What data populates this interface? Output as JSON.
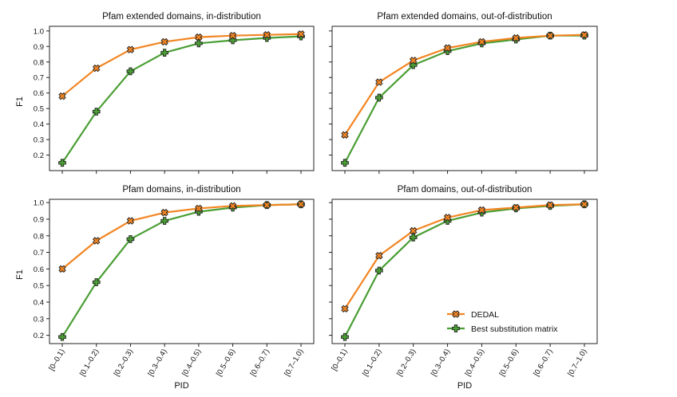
{
  "figure": {
    "shared_xlabel": "PID",
    "shared_ylabel": "F1",
    "legend": [
      {
        "name": "DEDAL",
        "color": "#f28522",
        "marker": "x-cross"
      },
      {
        "name": "Best substitution matrix",
        "color": "#4a9e34",
        "marker": "plus-cross"
      }
    ],
    "legend_position": "lower-right of bottom-right panel"
  },
  "chart_data": [
    {
      "type": "line",
      "title": "Pfam extended domains, in-distribution",
      "xlabel": "",
      "ylabel": "F1",
      "categories": [
        "[0–0.1)",
        "[0.1–0.2)",
        "[0.2–0.3)",
        "[0.3–0.4)",
        "[0.4–0.5)",
        "[0.5–0.6)",
        "[0.6–0.7)",
        "[0.7–1.0)"
      ],
      "ylim": [
        0.1,
        1.03
      ],
      "yticks": [
        "0.2",
        "0.3",
        "0.4",
        "0.5",
        "0.6",
        "0.7",
        "0.8",
        "0.9",
        "1.0"
      ],
      "series": [
        {
          "name": "DEDAL",
          "color": "#f28522",
          "values": [
            0.58,
            0.76,
            0.88,
            0.93,
            0.96,
            0.97,
            0.975,
            0.98
          ]
        },
        {
          "name": "Best substitution matrix",
          "color": "#4a9e34",
          "values": [
            0.15,
            0.48,
            0.74,
            0.86,
            0.92,
            0.94,
            0.955,
            0.965
          ]
        }
      ],
      "show_xticklabels": false,
      "show_ylabel": true
    },
    {
      "type": "line",
      "title": "Pfam extended domains, out-of-distribution",
      "xlabel": "",
      "ylabel": "",
      "categories": [
        "[0–0.1)",
        "[0.1–0.2)",
        "[0.2–0.3)",
        "[0.3–0.4)",
        "[0.4–0.5)",
        "[0.5–0.6)",
        "[0.6–0.7)",
        "[0.7–1.0)"
      ],
      "ylim": [
        0.1,
        1.03
      ],
      "yticks": [
        "0.2",
        "0.3",
        "0.4",
        "0.5",
        "0.6",
        "0.7",
        "0.8",
        "0.9",
        "1.0"
      ],
      "series": [
        {
          "name": "DEDAL",
          "color": "#f28522",
          "values": [
            0.33,
            0.67,
            0.81,
            0.89,
            0.93,
            0.955,
            0.97,
            0.975
          ]
        },
        {
          "name": "Best substitution matrix",
          "color": "#4a9e34",
          "values": [
            0.15,
            0.57,
            0.78,
            0.87,
            0.92,
            0.945,
            0.97,
            0.97
          ]
        }
      ],
      "show_xticklabels": false,
      "show_ylabel": false
    },
    {
      "type": "line",
      "title": "Pfam domains, in-distribution",
      "xlabel": "PID",
      "ylabel": "F1",
      "categories": [
        "[0–0.1)",
        "[0.1–0.2)",
        "[0.2–0.3)",
        "[0.3–0.4)",
        "[0.4–0.5)",
        "[0.5–0.6)",
        "[0.6–0.7)",
        "[0.7–1.0)"
      ],
      "ylim": [
        0.15,
        1.02
      ],
      "yticks": [
        "0.2",
        "0.3",
        "0.4",
        "0.5",
        "0.6",
        "0.7",
        "0.8",
        "0.9",
        "1.0"
      ],
      "series": [
        {
          "name": "DEDAL",
          "color": "#f28522",
          "values": [
            0.6,
            0.77,
            0.89,
            0.94,
            0.965,
            0.98,
            0.985,
            0.99
          ]
        },
        {
          "name": "Best substitution matrix",
          "color": "#4a9e34",
          "values": [
            0.19,
            0.52,
            0.78,
            0.89,
            0.945,
            0.97,
            0.985,
            0.99
          ]
        }
      ],
      "show_xticklabels": true,
      "show_ylabel": true
    },
    {
      "type": "line",
      "title": "Pfam domains, out-of-distribution",
      "xlabel": "PID",
      "ylabel": "",
      "categories": [
        "[0–0.1)",
        "[0.1–0.2)",
        "[0.2–0.3)",
        "[0.3–0.4)",
        "[0.4–0.5)",
        "[0.5–0.6)",
        "[0.6–0.7)",
        "[0.7–1.0)"
      ],
      "ylim": [
        0.15,
        1.02
      ],
      "yticks": [
        "0.2",
        "0.3",
        "0.4",
        "0.5",
        "0.6",
        "0.7",
        "0.8",
        "0.9",
        "1.0"
      ],
      "series": [
        {
          "name": "DEDAL",
          "color": "#f28522",
          "values": [
            0.36,
            0.68,
            0.83,
            0.91,
            0.955,
            0.97,
            0.985,
            0.99
          ]
        },
        {
          "name": "Best substitution matrix",
          "color": "#4a9e34",
          "values": [
            0.19,
            0.59,
            0.79,
            0.89,
            0.94,
            0.965,
            0.98,
            0.99
          ]
        }
      ],
      "show_xticklabels": true,
      "show_ylabel": false,
      "has_legend": true
    }
  ]
}
